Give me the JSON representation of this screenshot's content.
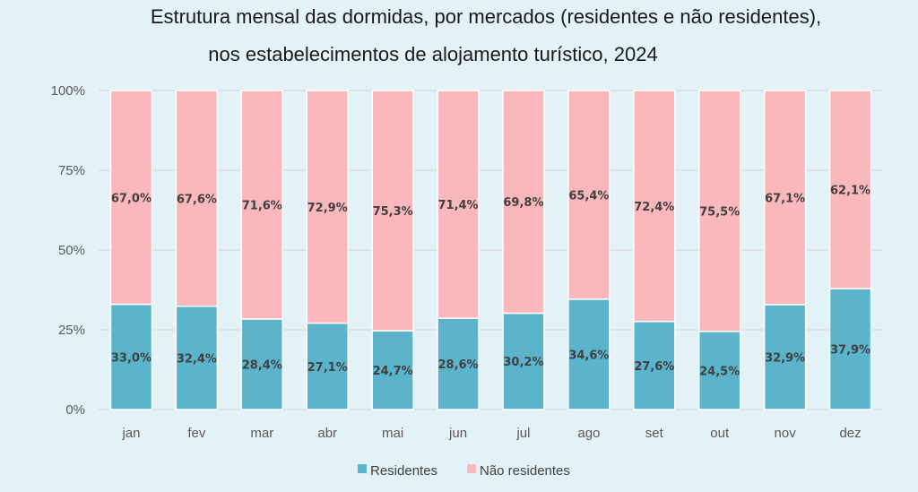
{
  "chart_data": {
    "type": "bar",
    "stacked": "percent",
    "title_lines": [
      "Estrutura mensal das dormidas, por mercados (residentes e não residentes),",
      "nos estabelecimentos de alojamento turístico, 2024"
    ],
    "categories": [
      "jan",
      "fev",
      "mar",
      "abr",
      "mai",
      "jun",
      "jul",
      "ago",
      "set",
      "out",
      "nov",
      "dez"
    ],
    "series": [
      {
        "name": "Residentes",
        "color": "#5bb4cb",
        "values": [
          33.0,
          32.4,
          28.4,
          27.1,
          24.7,
          28.6,
          30.2,
          34.6,
          27.6,
          24.5,
          32.9,
          37.9
        ],
        "labels": [
          "33,0%",
          "32,4%",
          "28,4%",
          "27,1%",
          "24,7%",
          "28,6%",
          "30,2%",
          "34,6%",
          "27,6%",
          "24,5%",
          "32,9%",
          "37,9%"
        ]
      },
      {
        "name": "Não residentes",
        "color": "#fab8bc",
        "values": [
          67.0,
          67.6,
          71.6,
          72.9,
          75.3,
          71.4,
          69.8,
          65.4,
          72.4,
          75.5,
          67.1,
          62.1
        ],
        "labels": [
          "67,0%",
          "67,6%",
          "71,6%",
          "72,9%",
          "75,3%",
          "71,4%",
          "69,8%",
          "65,4%",
          "72,4%",
          "75,5%",
          "67,1%",
          "62,1%"
        ]
      }
    ],
    "y_ticks": [
      0,
      25,
      50,
      75,
      100
    ],
    "y_tick_labels": [
      "0%",
      "25%",
      "50%",
      "75%",
      "100%"
    ],
    "ylim": [
      0,
      100
    ],
    "grid": true,
    "legend_position": "bottom-center"
  }
}
